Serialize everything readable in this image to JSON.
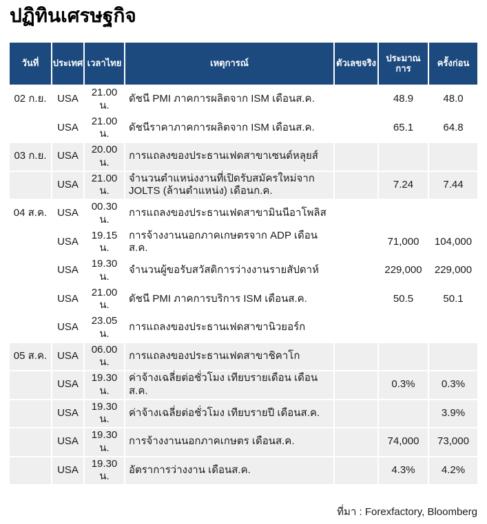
{
  "page": {
    "title": "ปฏิทินเศรษฐกิจ",
    "source_note": "ที่มา : Forexfactory, Bloomberg"
  },
  "colors": {
    "header_bg": "#1c4a7e",
    "header_text": "#ffffff",
    "stripe_bg": "#efefef",
    "text": "#1a1a1a"
  },
  "table": {
    "columns": [
      {
        "key": "date",
        "label": "วันที่"
      },
      {
        "key": "country",
        "label": "ประเทศ"
      },
      {
        "key": "time",
        "label": "เวลาไทย"
      },
      {
        "key": "event",
        "label": "เหตุการณ์"
      },
      {
        "key": "actual",
        "label": "ตัวเลขจริง"
      },
      {
        "key": "forecast",
        "label": "ประมาณการ"
      },
      {
        "key": "previous",
        "label": "ครั้งก่อน"
      }
    ],
    "rows": [
      {
        "date": "02 ก.ย.",
        "country": "USA",
        "time": "21.00 น.",
        "event": "ดัชนี PMI ภาคการผลิตจาก ISM เดือนส.ค.",
        "actual": "",
        "forecast": "48.9",
        "previous": "48.0",
        "shaded": false
      },
      {
        "date": "",
        "country": "USA",
        "time": "21.00 น.",
        "event": "ดัชนีราคาภาคการผลิตจาก ISM เดือนส.ค.",
        "actual": "",
        "forecast": "65.1",
        "previous": "64.8",
        "shaded": false
      },
      {
        "date": "03 ก.ย.",
        "country": "USA",
        "time": "20.00 น.",
        "event": "การแถลงของประธานเฟดสาขาเซนต์หลุยส์",
        "actual": "",
        "forecast": "",
        "previous": "",
        "shaded": true
      },
      {
        "date": "",
        "country": "USA",
        "time": "21.00 น.",
        "event": "จำนวนตำแหน่งงานที่เปิดรับสมัครใหม่จาก JOLTS (ล้านตำแหน่ง) เดือนก.ค.",
        "actual": "",
        "forecast": "7.24",
        "previous": "7.44",
        "shaded": true
      },
      {
        "date": "04 ส.ค.",
        "country": "USA",
        "time": "00.30 น.",
        "event": "การแถลงของประธานเฟดสาขามินนีอาโพลิส",
        "actual": "",
        "forecast": "",
        "previous": "",
        "shaded": false
      },
      {
        "date": "",
        "country": "USA",
        "time": "19.15 น.",
        "event": "การจ้างงานนอกภาคเกษตรจาก ADP เดือนส.ค.",
        "actual": "",
        "forecast": "71,000",
        "previous": "104,000",
        "shaded": false
      },
      {
        "date": "",
        "country": "USA",
        "time": "19.30 น.",
        "event": "จำนวนผู้ขอรับสวัสดิการว่างงานรายสัปดาห์",
        "actual": "",
        "forecast": "229,000",
        "previous": "229,000",
        "shaded": false
      },
      {
        "date": "",
        "country": "USA",
        "time": "21.00 น.",
        "event": "ดัชนี PMI ภาคการบริการ ISM เดือนส.ค.",
        "actual": "",
        "forecast": "50.5",
        "previous": "50.1",
        "shaded": false
      },
      {
        "date": "",
        "country": "USA",
        "time": "23.05 น.",
        "event": "การแถลงของประธานเฟดสาขานิวยอร์ก",
        "actual": "",
        "forecast": "",
        "previous": "",
        "shaded": false
      },
      {
        "date": "05 ส.ค.",
        "country": "USA",
        "time": "06.00 น.",
        "event": "การแถลงของประธานเฟดสาขาชิคาโก",
        "actual": "",
        "forecast": "",
        "previous": "",
        "shaded": true
      },
      {
        "date": "",
        "country": "USA",
        "time": "19.30 น.",
        "event": "ค่าจ้างเฉลี่ยต่อชั่วโมง เทียบรายเดือน เดือนส.ค.",
        "actual": "",
        "forecast": "0.3%",
        "previous": "0.3%",
        "shaded": true
      },
      {
        "date": "",
        "country": "USA",
        "time": "19.30 น.",
        "event": "ค่าจ้างเฉลี่ยต่อชั่วโมง เทียบรายปี เดือนส.ค.",
        "actual": "",
        "forecast": "",
        "previous": "3.9%",
        "shaded": true
      },
      {
        "date": "",
        "country": "USA",
        "time": "19.30 น.",
        "event": "การจ้างงานนอกภาคเกษตร เดือนส.ค.",
        "actual": "",
        "forecast": "74,000",
        "previous": "73,000",
        "shaded": true
      },
      {
        "date": "",
        "country": "USA",
        "time": "19.30 น.",
        "event": "อัตราการว่างงาน เดือนส.ค.",
        "actual": "",
        "forecast": "4.3%",
        "previous": "4.2%",
        "shaded": true
      }
    ]
  }
}
